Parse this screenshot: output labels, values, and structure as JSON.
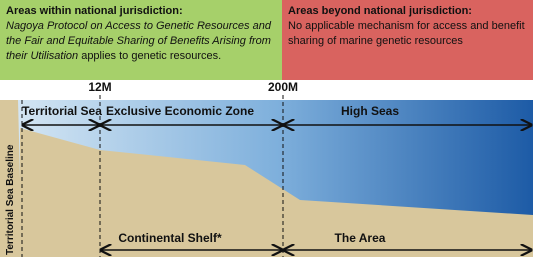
{
  "jurisdiction": {
    "within": {
      "title": "Areas within national jurisdiction:",
      "text_italic": "Nagoya Protocol on Access to Genetic Resources and the Fair and Equitable Sharing of Benefits Arising from their Utilisation",
      "text": " applies to genetic resources."
    },
    "beyond": {
      "title": "Areas beyond national jurisdiction:",
      "text": "No applicable mechanism for access and benefit sharing of marine genetic resources"
    }
  },
  "markers": [
    "12M",
    "200M"
  ],
  "zones": [
    "Territorial Sea",
    "Exclusive Economic Zone",
    "High Seas"
  ],
  "baseline": "Territorial Sea Baseline",
  "seabed_zones": [
    "Continental Shelf*",
    "The Area"
  ]
}
